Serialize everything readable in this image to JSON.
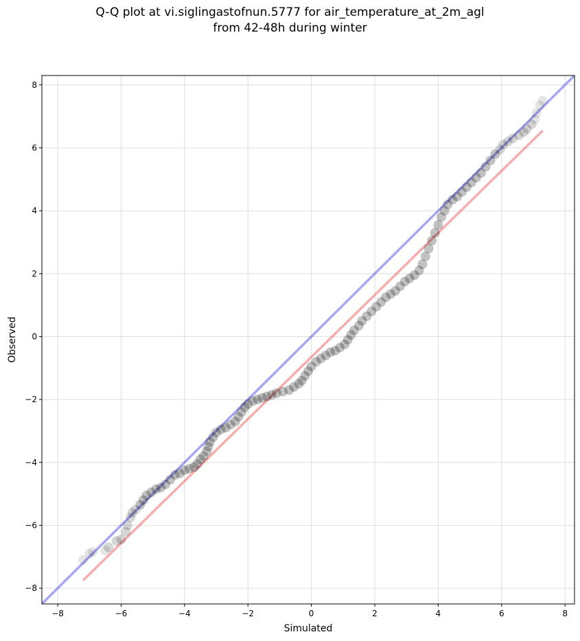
{
  "chart_data": {
    "type": "scatter",
    "title_line1": "Q-Q plot at vi.siglingastofnun.5777 for air_temperature_at_2m_agl",
    "title_line2": "from 42-48h during winter",
    "xlabel": "Simulated",
    "ylabel": "Observed",
    "xlim": [
      -8.5,
      8.3
    ],
    "ylim": [
      -8.5,
      8.3
    ],
    "xticks": [
      -8,
      -6,
      -4,
      -2,
      0,
      2,
      4,
      6,
      8
    ],
    "yticks": [
      -8,
      -6,
      -4,
      -2,
      0,
      2,
      4,
      6,
      8
    ],
    "grid": true,
    "colors": {
      "points": "#000000",
      "identity_line": "#0000dd",
      "fit_line": "#e00000",
      "grid": "#dddddd"
    },
    "identity_line": {
      "x": [
        -8.5,
        8.3
      ],
      "y": [
        -8.5,
        8.3
      ]
    },
    "fit_line": {
      "x": [
        -7.2,
        7.3
      ],
      "y": [
        -7.75,
        6.55
      ]
    },
    "quantiles": [
      [
        -7.2,
        -7.1
      ],
      [
        -7.0,
        -6.9
      ],
      [
        -6.9,
        -6.85
      ],
      [
        -6.5,
        -6.8
      ],
      [
        -6.4,
        -6.7
      ],
      [
        -6.15,
        -6.5
      ],
      [
        -6.0,
        -6.45
      ],
      [
        -5.85,
        -6.2
      ],
      [
        -5.8,
        -6.0
      ],
      [
        -5.7,
        -5.75
      ],
      [
        -5.65,
        -5.6
      ],
      [
        -5.55,
        -5.5
      ],
      [
        -5.4,
        -5.35
      ],
      [
        -5.3,
        -5.2
      ],
      [
        -5.2,
        -5.05
      ],
      [
        -5.05,
        -4.95
      ],
      [
        -4.9,
        -4.85
      ],
      [
        -4.75,
        -4.8
      ],
      [
        -4.6,
        -4.7
      ],
      [
        -4.45,
        -4.55
      ],
      [
        -4.3,
        -4.4
      ],
      [
        -4.15,
        -4.35
      ],
      [
        -4.0,
        -4.25
      ],
      [
        -3.85,
        -4.2
      ],
      [
        -3.7,
        -4.15
      ],
      [
        -3.6,
        -4.05
      ],
      [
        -3.5,
        -3.9
      ],
      [
        -3.4,
        -3.8
      ],
      [
        -3.3,
        -3.65
      ],
      [
        -3.25,
        -3.5
      ],
      [
        -3.2,
        -3.35
      ],
      [
        -3.1,
        -3.2
      ],
      [
        -3.0,
        -3.05
      ],
      [
        -2.85,
        -2.95
      ],
      [
        -2.7,
        -2.9
      ],
      [
        -2.55,
        -2.8
      ],
      [
        -2.4,
        -2.7
      ],
      [
        -2.3,
        -2.55
      ],
      [
        -2.2,
        -2.4
      ],
      [
        -2.1,
        -2.25
      ],
      [
        -2.0,
        -2.15
      ],
      [
        -1.85,
        -2.05
      ],
      [
        -1.7,
        -2.0
      ],
      [
        -1.55,
        -1.95
      ],
      [
        -1.4,
        -1.9
      ],
      [
        -1.25,
        -1.85
      ],
      [
        -1.1,
        -1.8
      ],
      [
        -0.9,
        -1.75
      ],
      [
        -0.7,
        -1.7
      ],
      [
        -0.55,
        -1.6
      ],
      [
        -0.4,
        -1.5
      ],
      [
        -0.3,
        -1.4
      ],
      [
        -0.2,
        -1.25
      ],
      [
        -0.1,
        -1.1
      ],
      [
        0.0,
        -0.95
      ],
      [
        0.15,
        -0.8
      ],
      [
        0.3,
        -0.7
      ],
      [
        0.45,
        -0.6
      ],
      [
        0.6,
        -0.5
      ],
      [
        0.75,
        -0.45
      ],
      [
        0.9,
        -0.35
      ],
      [
        1.05,
        -0.25
      ],
      [
        1.15,
        -0.1
      ],
      [
        1.25,
        0.05
      ],
      [
        1.35,
        0.2
      ],
      [
        1.5,
        0.35
      ],
      [
        1.6,
        0.5
      ],
      [
        1.75,
        0.65
      ],
      [
        1.9,
        0.8
      ],
      [
        2.05,
        0.95
      ],
      [
        2.2,
        1.1
      ],
      [
        2.35,
        1.25
      ],
      [
        2.5,
        1.35
      ],
      [
        2.65,
        1.45
      ],
      [
        2.8,
        1.6
      ],
      [
        2.95,
        1.75
      ],
      [
        3.1,
        1.85
      ],
      [
        3.25,
        1.95
      ],
      [
        3.4,
        2.1
      ],
      [
        3.5,
        2.3
      ],
      [
        3.6,
        2.55
      ],
      [
        3.7,
        2.8
      ],
      [
        3.8,
        3.05
      ],
      [
        3.9,
        3.3
      ],
      [
        4.0,
        3.55
      ],
      [
        4.1,
        3.8
      ],
      [
        4.2,
        4.0
      ],
      [
        4.3,
        4.2
      ],
      [
        4.45,
        4.35
      ],
      [
        4.6,
        4.45
      ],
      [
        4.75,
        4.6
      ],
      [
        4.9,
        4.75
      ],
      [
        5.05,
        4.9
      ],
      [
        5.2,
        5.05
      ],
      [
        5.35,
        5.2
      ],
      [
        5.5,
        5.4
      ],
      [
        5.65,
        5.6
      ],
      [
        5.8,
        5.8
      ],
      [
        5.95,
        5.95
      ],
      [
        6.05,
        6.1
      ],
      [
        6.2,
        6.2
      ],
      [
        6.35,
        6.3
      ],
      [
        6.55,
        6.4
      ],
      [
        6.7,
        6.5
      ],
      [
        6.8,
        6.6
      ],
      [
        6.95,
        6.75
      ],
      [
        7.05,
        6.9
      ],
      [
        7.1,
        7.1
      ],
      [
        7.2,
        7.35
      ],
      [
        7.3,
        7.5
      ]
    ]
  }
}
